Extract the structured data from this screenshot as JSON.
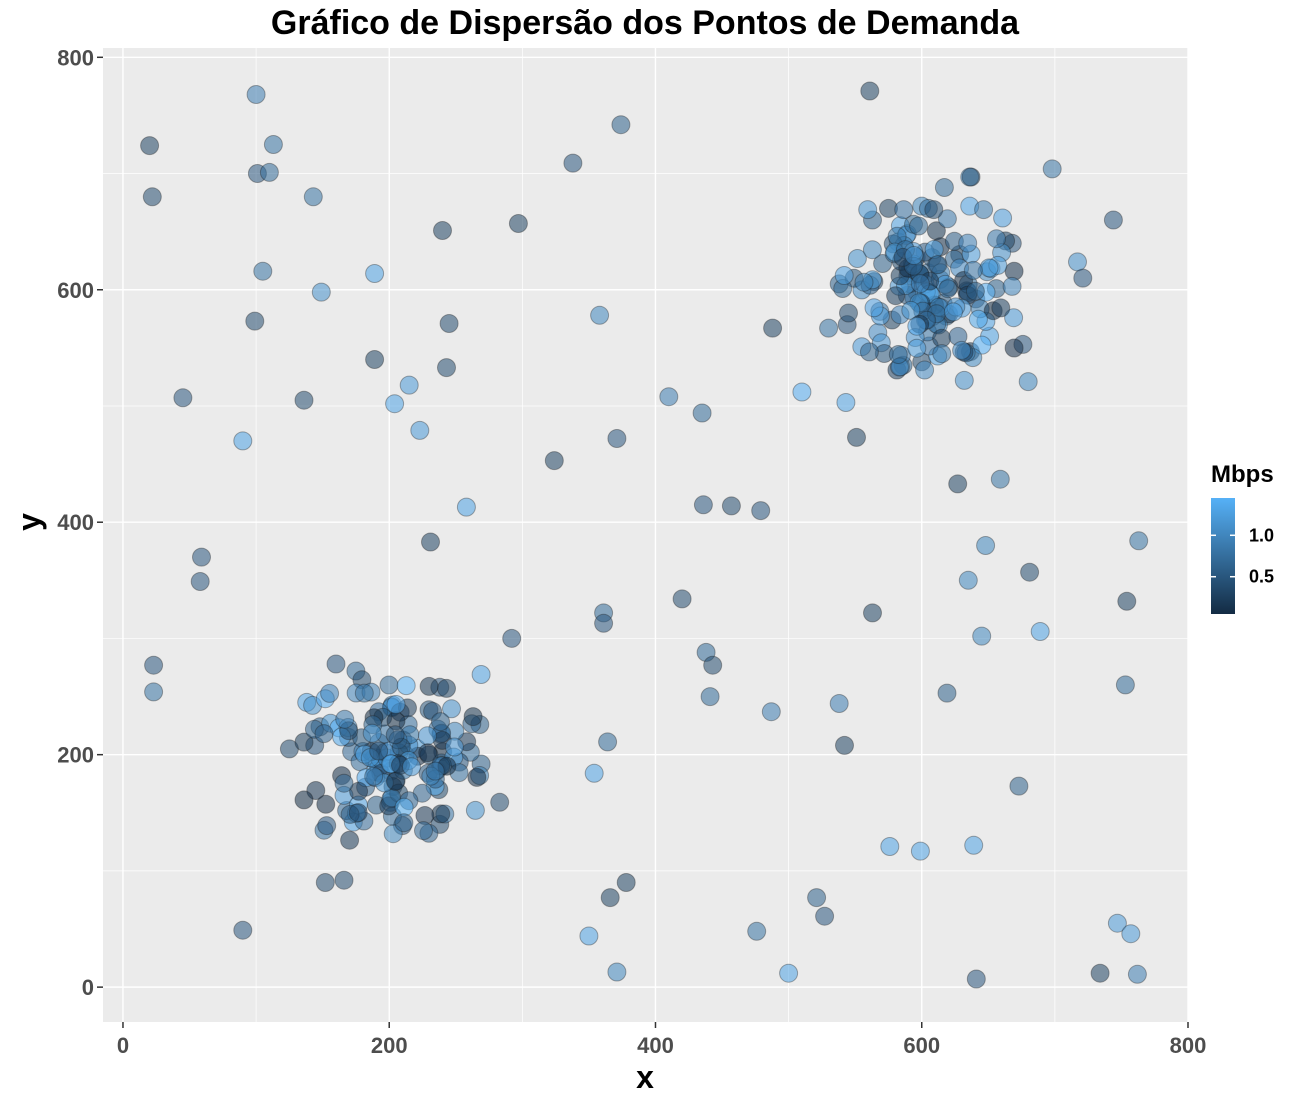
{
  "chart_data": {
    "type": "scatter",
    "title": "Gráfico de Dispersão dos Pontos de Demanda",
    "xlabel": "x",
    "ylabel": "y",
    "xlim": [
      -15,
      800
    ],
    "ylim": [
      -30,
      808
    ],
    "xticks": [
      0,
      200,
      400,
      600,
      800
    ],
    "yticks": [
      0,
      200,
      400,
      600,
      800
    ],
    "xtick_labels": [
      "0",
      "200",
      "400",
      "600",
      "800"
    ],
    "ytick_labels": [
      "0",
      "200",
      "400",
      "600",
      "800"
    ],
    "grid": true,
    "panel_background": "#EBEBEB",
    "grid_color": "#FFFFFF",
    "legend": {
      "title": "Mbps",
      "position": "right",
      "type": "colorbar",
      "low_color": "#132B43",
      "high_color": "#56B1F7",
      "range": [
        0.05,
        1.45
      ],
      "breaks": [
        0.5,
        1.0
      ],
      "break_labels": [
        "0.5",
        "1.0"
      ]
    },
    "point_alpha": 0.55,
    "points": [
      {
        "x": 20,
        "y": 724,
        "v": 0.3
      },
      {
        "x": 22,
        "y": 680,
        "v": 0.4
      },
      {
        "x": 100,
        "y": 768,
        "v": 0.9
      },
      {
        "x": 113,
        "y": 725,
        "v": 0.8
      },
      {
        "x": 101,
        "y": 700,
        "v": 0.5
      },
      {
        "x": 110,
        "y": 701,
        "v": 0.7
      },
      {
        "x": 143,
        "y": 680,
        "v": 0.8
      },
      {
        "x": 105,
        "y": 616,
        "v": 0.8
      },
      {
        "x": 149,
        "y": 598,
        "v": 1.1
      },
      {
        "x": 99,
        "y": 573,
        "v": 0.4
      },
      {
        "x": 45,
        "y": 507,
        "v": 0.5
      },
      {
        "x": 136,
        "y": 505,
        "v": 0.4
      },
      {
        "x": 189,
        "y": 540,
        "v": 0.3
      },
      {
        "x": 189,
        "y": 614,
        "v": 1.3
      },
      {
        "x": 90,
        "y": 470,
        "v": 1.3
      },
      {
        "x": 215,
        "y": 518,
        "v": 1.2
      },
      {
        "x": 204,
        "y": 502,
        "v": 1.3
      },
      {
        "x": 223,
        "y": 479,
        "v": 1.2
      },
      {
        "x": 240,
        "y": 651,
        "v": 0.3
      },
      {
        "x": 245,
        "y": 571,
        "v": 0.4
      },
      {
        "x": 243,
        "y": 533,
        "v": 0.4
      },
      {
        "x": 231,
        "y": 383,
        "v": 0.3
      },
      {
        "x": 258,
        "y": 413,
        "v": 1.3
      },
      {
        "x": 297,
        "y": 657,
        "v": 0.3
      },
      {
        "x": 338,
        "y": 709,
        "v": 0.5
      },
      {
        "x": 374,
        "y": 742,
        "v": 0.6
      },
      {
        "x": 358,
        "y": 578,
        "v": 1.0
      },
      {
        "x": 324,
        "y": 453,
        "v": 0.3
      },
      {
        "x": 371,
        "y": 472,
        "v": 0.5
      },
      {
        "x": 410,
        "y": 508,
        "v": 0.9
      },
      {
        "x": 435,
        "y": 494,
        "v": 0.7
      },
      {
        "x": 436,
        "y": 415,
        "v": 0.5
      },
      {
        "x": 457,
        "y": 414,
        "v": 0.4
      },
      {
        "x": 479,
        "y": 410,
        "v": 0.5
      },
      {
        "x": 488,
        "y": 567,
        "v": 0.3
      },
      {
        "x": 510,
        "y": 512,
        "v": 1.4
      },
      {
        "x": 543,
        "y": 503,
        "v": 1.3
      },
      {
        "x": 551,
        "y": 473,
        "v": 0.3
      },
      {
        "x": 561,
        "y": 771,
        "v": 0.3
      },
      {
        "x": 698,
        "y": 704,
        "v": 0.8
      },
      {
        "x": 744,
        "y": 660,
        "v": 0.5
      },
      {
        "x": 717,
        "y": 624,
        "v": 1.1
      },
      {
        "x": 721,
        "y": 610,
        "v": 0.5
      },
      {
        "x": 627,
        "y": 433,
        "v": 0.3
      },
      {
        "x": 659,
        "y": 437,
        "v": 0.8
      },
      {
        "x": 632,
        "y": 522,
        "v": 1.1
      },
      {
        "x": 680,
        "y": 521,
        "v": 1.0
      },
      {
        "x": 676,
        "y": 553,
        "v": 0.5
      },
      {
        "x": 648,
        "y": 380,
        "v": 1.0
      },
      {
        "x": 681,
        "y": 357,
        "v": 0.4
      },
      {
        "x": 635,
        "y": 350,
        "v": 1.0
      },
      {
        "x": 763,
        "y": 384,
        "v": 0.8
      },
      {
        "x": 754,
        "y": 332,
        "v": 0.3
      },
      {
        "x": 23,
        "y": 277,
        "v": 0.5
      },
      {
        "x": 23,
        "y": 254,
        "v": 0.8
      },
      {
        "x": 59,
        "y": 370,
        "v": 0.5
      },
      {
        "x": 58,
        "y": 349,
        "v": 0.5
      },
      {
        "x": 90,
        "y": 49,
        "v": 0.5
      },
      {
        "x": 152,
        "y": 90,
        "v": 0.4
      },
      {
        "x": 166,
        "y": 92,
        "v": 0.4
      },
      {
        "x": 292,
        "y": 300,
        "v": 0.5
      },
      {
        "x": 283,
        "y": 159,
        "v": 0.4
      },
      {
        "x": 269,
        "y": 269,
        "v": 1.3
      },
      {
        "x": 361,
        "y": 322,
        "v": 0.7
      },
      {
        "x": 361,
        "y": 313,
        "v": 0.5
      },
      {
        "x": 364,
        "y": 211,
        "v": 0.7
      },
      {
        "x": 354,
        "y": 184,
        "v": 1.3
      },
      {
        "x": 420,
        "y": 334,
        "v": 0.4
      },
      {
        "x": 438,
        "y": 288,
        "v": 0.7
      },
      {
        "x": 443,
        "y": 277,
        "v": 0.4
      },
      {
        "x": 441,
        "y": 250,
        "v": 0.7
      },
      {
        "x": 487,
        "y": 237,
        "v": 0.9
      },
      {
        "x": 538,
        "y": 244,
        "v": 0.9
      },
      {
        "x": 542,
        "y": 208,
        "v": 0.3
      },
      {
        "x": 563,
        "y": 322,
        "v": 0.3
      },
      {
        "x": 689,
        "y": 306,
        "v": 1.3
      },
      {
        "x": 645,
        "y": 302,
        "v": 1.0
      },
      {
        "x": 619,
        "y": 253,
        "v": 0.6
      },
      {
        "x": 753,
        "y": 260,
        "v": 0.7
      },
      {
        "x": 673,
        "y": 173,
        "v": 0.6
      },
      {
        "x": 576,
        "y": 121,
        "v": 1.3
      },
      {
        "x": 599,
        "y": 117,
        "v": 1.3
      },
      {
        "x": 639,
        "y": 122,
        "v": 1.3
      },
      {
        "x": 350,
        "y": 44,
        "v": 1.3
      },
      {
        "x": 366,
        "y": 77,
        "v": 0.3
      },
      {
        "x": 378,
        "y": 90,
        "v": 0.3
      },
      {
        "x": 371,
        "y": 13,
        "v": 1.0
      },
      {
        "x": 476,
        "y": 48,
        "v": 0.8
      },
      {
        "x": 500,
        "y": 12,
        "v": 1.3
      },
      {
        "x": 521,
        "y": 77,
        "v": 0.6
      },
      {
        "x": 527,
        "y": 61,
        "v": 0.5
      },
      {
        "x": 641,
        "y": 7,
        "v": 0.5
      },
      {
        "x": 734,
        "y": 12,
        "v": 0.3
      },
      {
        "x": 747,
        "y": 55,
        "v": 1.2
      },
      {
        "x": 757,
        "y": 46,
        "v": 1.2
      },
      {
        "x": 762,
        "y": 11,
        "v": 0.9
      },
      {
        "x": 125,
        "y": 205,
        "v": 0.4
      },
      {
        "x": 138,
        "y": 245,
        "v": 1.3
      },
      {
        "x": 151,
        "y": 135,
        "v": 0.8
      },
      {
        "x": 153,
        "y": 139,
        "v": 0.5
      },
      {
        "x": 160,
        "y": 278,
        "v": 0.5
      },
      {
        "x": 173,
        "y": 142,
        "v": 1.3
      },
      {
        "x": 175,
        "y": 272,
        "v": 0.7
      },
      {
        "x": 210,
        "y": 139,
        "v": 0.5
      },
      {
        "x": 238,
        "y": 140,
        "v": 0.4
      },
      {
        "x": 268,
        "y": 226,
        "v": 0.6
      },
      {
        "x": 269,
        "y": 192,
        "v": 0.6
      },
      {
        "x": 261,
        "y": 202,
        "v": 0.7
      },
      {
        "x": 238,
        "y": 258,
        "v": 0.5
      },
      {
        "x": 243,
        "y": 257,
        "v": 0.3
      },
      {
        "x": 144,
        "y": 208,
        "v": 0.5
      },
      {
        "x": 148,
        "y": 224,
        "v": 0.6
      },
      {
        "x": 168,
        "y": 152,
        "v": 0.7
      },
      {
        "x": 166,
        "y": 165,
        "v": 1.2
      },
      {
        "x": 203,
        "y": 132,
        "v": 1.0
      },
      {
        "x": 563,
        "y": 660,
        "v": 0.6
      },
      {
        "x": 575,
        "y": 670,
        "v": 0.3
      },
      {
        "x": 584,
        "y": 655,
        "v": 1.3
      },
      {
        "x": 600,
        "y": 672,
        "v": 1.0
      },
      {
        "x": 605,
        "y": 670,
        "v": 0.7
      },
      {
        "x": 617,
        "y": 688,
        "v": 0.7
      },
      {
        "x": 636,
        "y": 697,
        "v": 1.2
      },
      {
        "x": 637,
        "y": 697,
        "v": 0.3
      },
      {
        "x": 636,
        "y": 672,
        "v": 1.3
      },
      {
        "x": 538,
        "y": 605,
        "v": 0.6
      },
      {
        "x": 530,
        "y": 567,
        "v": 0.8
      },
      {
        "x": 544,
        "y": 570,
        "v": 0.5
      },
      {
        "x": 545,
        "y": 580,
        "v": 0.4
      },
      {
        "x": 555,
        "y": 551,
        "v": 1.2
      },
      {
        "x": 586,
        "y": 535,
        "v": 0.7
      },
      {
        "x": 600,
        "y": 538,
        "v": 0.4
      },
      {
        "x": 651,
        "y": 560,
        "v": 1.3
      },
      {
        "x": 669,
        "y": 576,
        "v": 1.2
      },
      {
        "x": 668,
        "y": 640,
        "v": 0.5
      },
      {
        "x": 663,
        "y": 642,
        "v": 0.3
      },
      {
        "x": 660,
        "y": 632,
        "v": 1.1
      },
      {
        "x": 656,
        "y": 601,
        "v": 0.6
      },
      {
        "x": 612,
        "y": 543,
        "v": 1.3
      }
    ],
    "clusters": [
      {
        "cx": 205,
        "cy": 200,
        "sx": 30,
        "sy": 32,
        "n": 140,
        "seed": 7
      },
      {
        "cx": 605,
        "cy": 600,
        "sx": 28,
        "sy": 30,
        "n": 150,
        "seed": 19
      }
    ]
  }
}
